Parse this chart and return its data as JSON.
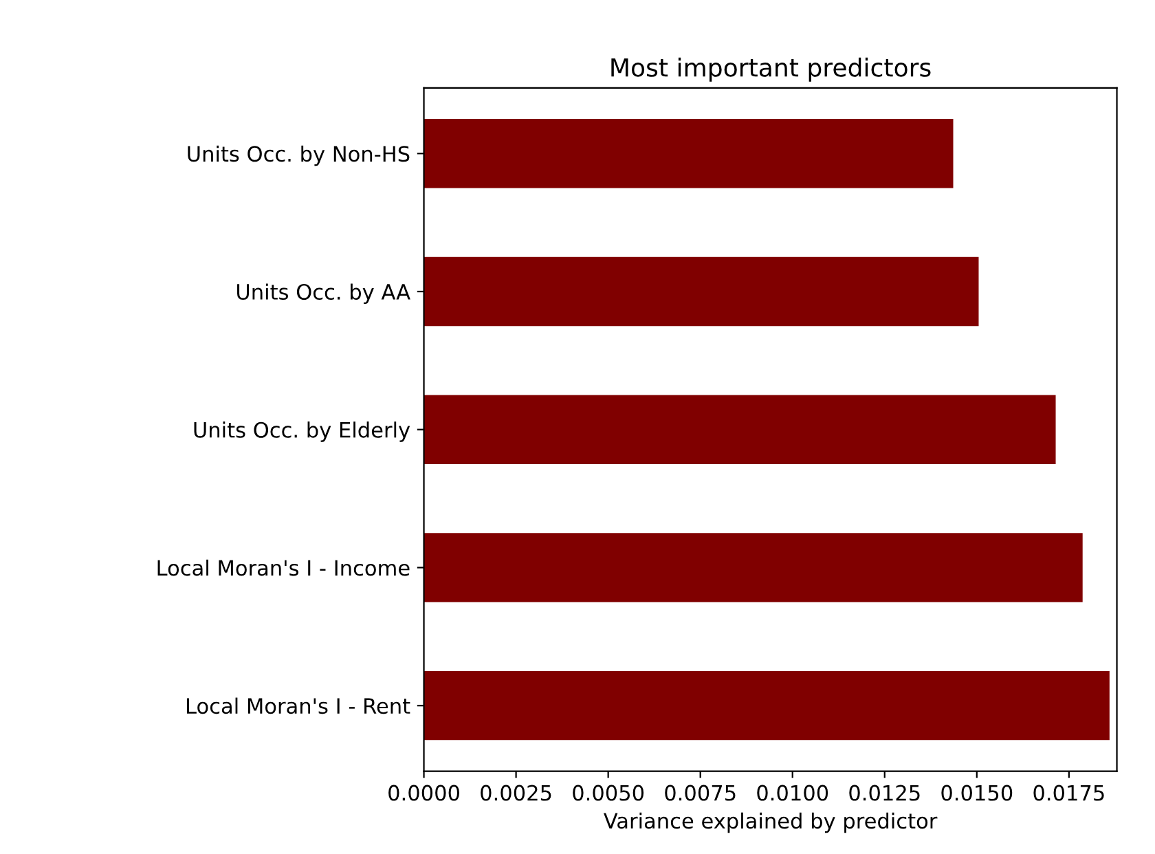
{
  "chart_data": {
    "type": "bar",
    "orientation": "horizontal",
    "title": "Most important predictors",
    "xlabel": "Variance explained by predictor",
    "categories": [
      "Units Occ. by Non-HS",
      "Units Occ. by AA",
      "Units Occ. by Elderly",
      "Local Moran's I - Income",
      "Local Moran's I - Rent"
    ],
    "values": [
      0.01436,
      0.01505,
      0.01714,
      0.01787,
      0.0186
    ],
    "color": "#800000",
    "xlim": [
      0,
      0.0188
    ],
    "xticks": [
      {
        "value": 0,
        "label": "0.0000"
      },
      {
        "value": 0.0025,
        "label": "0.0025"
      },
      {
        "value": 0.005,
        "label": "0.0050"
      },
      {
        "value": 0.0075,
        "label": "0.0075"
      },
      {
        "value": 0.01,
        "label": "0.0100"
      },
      {
        "value": 0.0125,
        "label": "0.0125"
      },
      {
        "value": 0.015,
        "label": "0.0150"
      },
      {
        "value": 0.0175,
        "label": "0.0175"
      }
    ],
    "grid": false,
    "legend": false
  }
}
